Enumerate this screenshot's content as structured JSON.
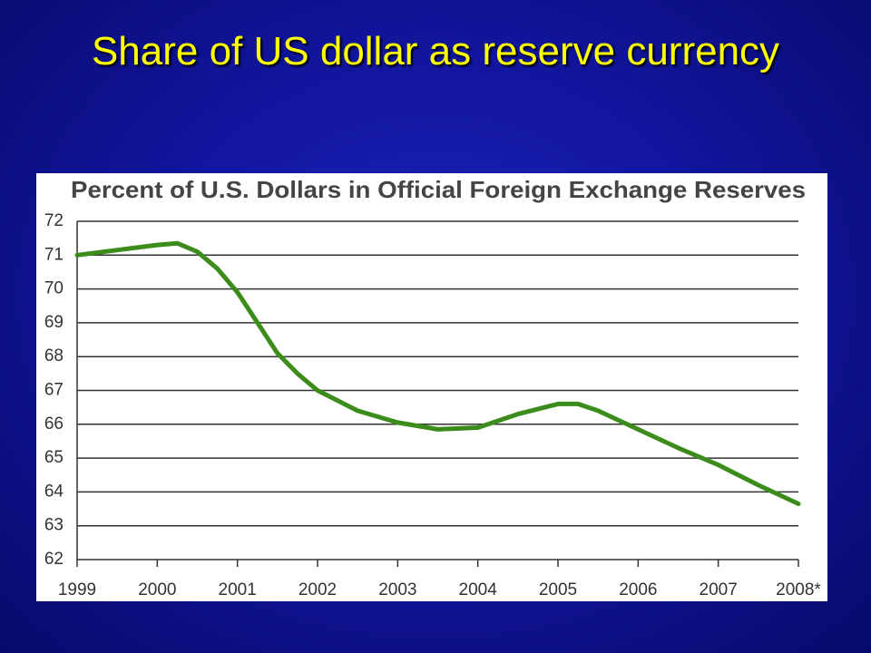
{
  "slide_title": "Share of US dollar as reserve currency",
  "chart_data": {
    "type": "line",
    "title": "Percent of U.S. Dollars in Official Foreign Exchange Reserves",
    "x": [
      1999,
      1999.5,
      2000,
      2000.25,
      2000.5,
      2000.75,
      2001,
      2001.25,
      2001.5,
      2001.75,
      2002,
      2002.5,
      2003,
      2003.5,
      2004,
      2004.5,
      2005,
      2005.25,
      2005.5,
      2006,
      2006.5,
      2007,
      2007.5,
      2008
    ],
    "values": [
      71.0,
      71.15,
      71.3,
      71.35,
      71.1,
      70.6,
      69.9,
      69.0,
      68.1,
      67.5,
      67.0,
      66.4,
      66.05,
      65.85,
      65.9,
      66.3,
      66.6,
      66.6,
      66.4,
      65.85,
      65.3,
      64.8,
      64.2,
      63.65
    ],
    "color": "#3c8c1c",
    "xlim": [
      1999,
      2008
    ],
    "xticks": [
      1999,
      2000,
      2001,
      2002,
      2003,
      2004,
      2005,
      2006,
      2007,
      {
        "value": 2008,
        "label": "2008*"
      }
    ],
    "ylim": [
      62,
      72
    ],
    "yticks": [
      62,
      63,
      64,
      65,
      66,
      67,
      68,
      69,
      70,
      71,
      72
    ],
    "grid": true
  }
}
